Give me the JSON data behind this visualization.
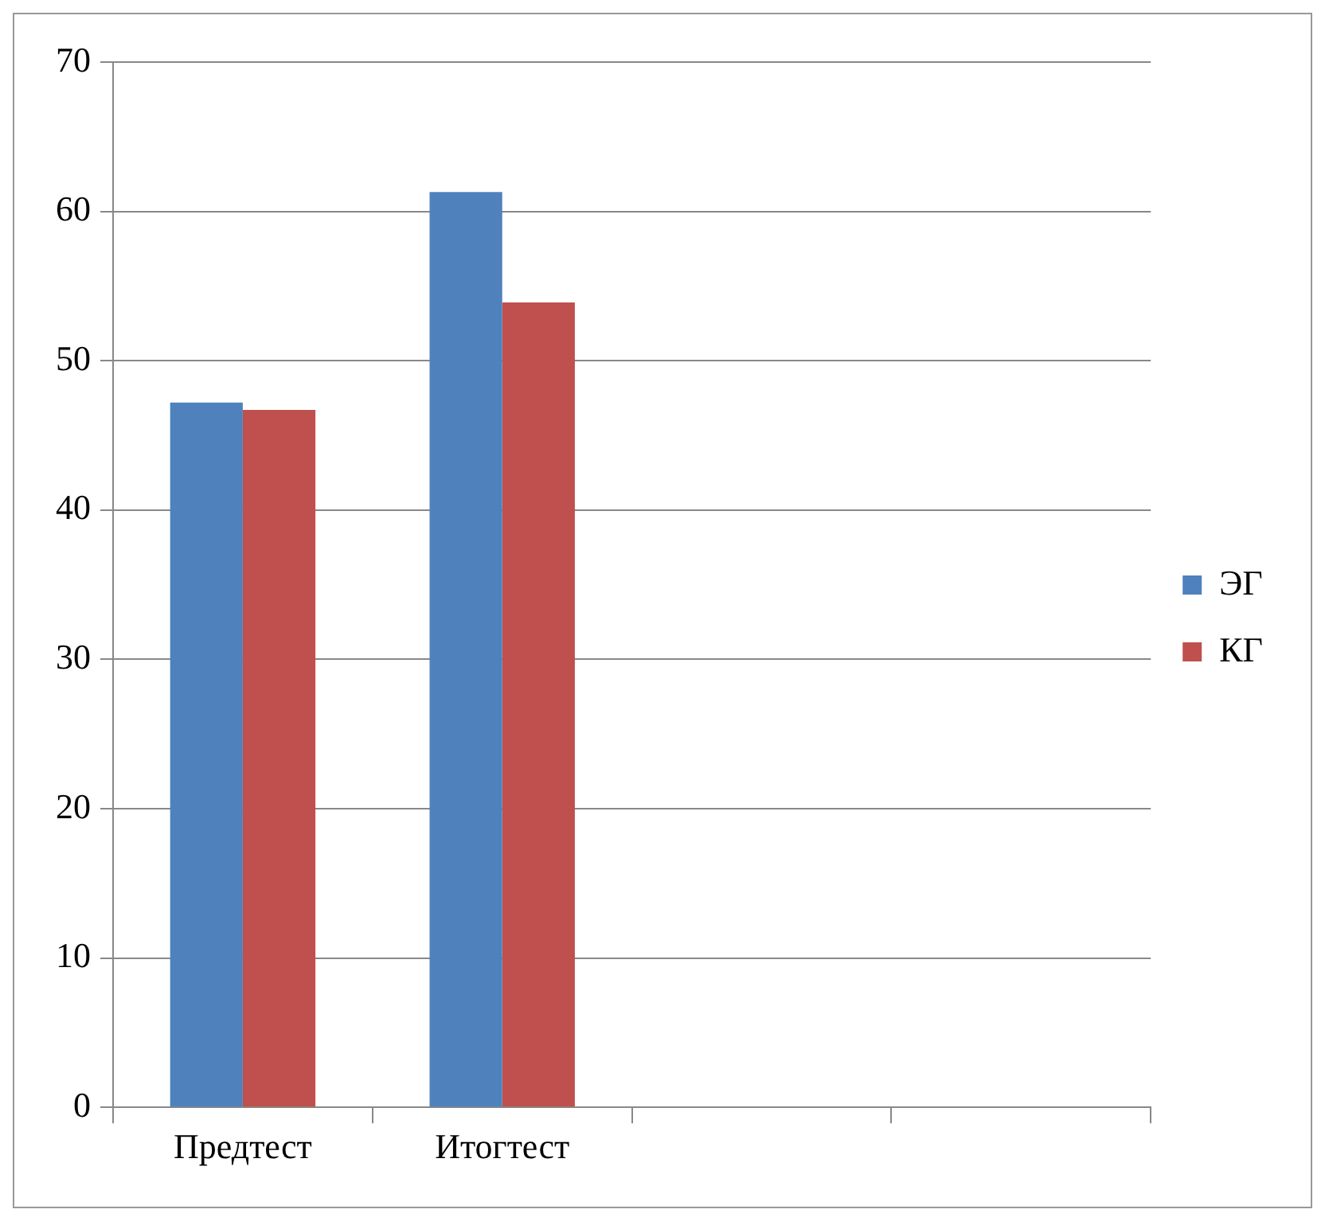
{
  "chart_data": {
    "type": "bar",
    "categories": [
      "Предтест",
      "Итогтест",
      null,
      null
    ],
    "series": [
      {
        "name": "ЭГ",
        "color": "#4f81bd",
        "values": [
          47.2,
          61.3,
          null,
          null
        ]
      },
      {
        "name": "КГ",
        "color": "#c0504d",
        "values": [
          46.7,
          53.9,
          null,
          null
        ]
      }
    ],
    "ylim": [
      0,
      70
    ],
    "yticks": [
      0,
      10,
      20,
      30,
      40,
      50,
      60,
      70
    ],
    "grid": "y",
    "legend": "right"
  }
}
